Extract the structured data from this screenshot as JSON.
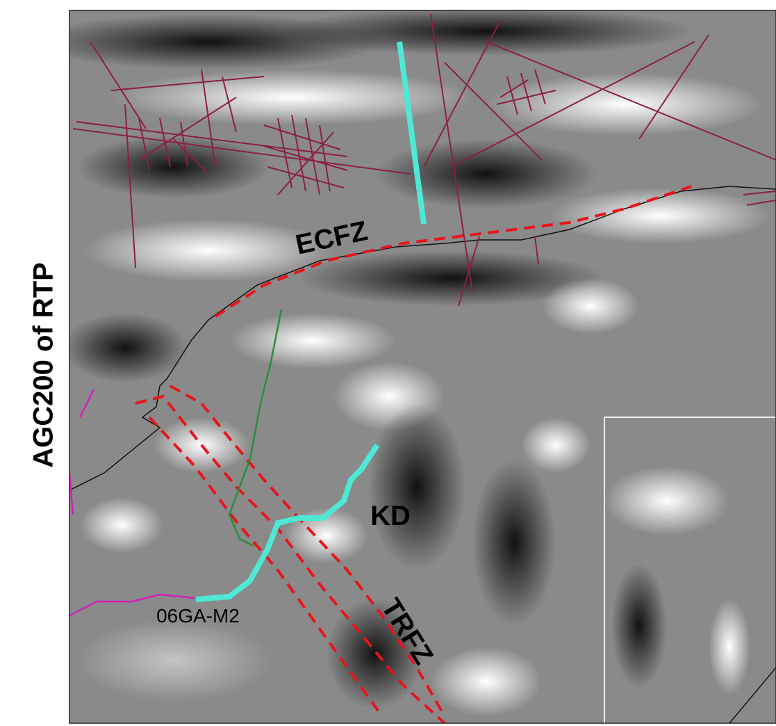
{
  "title": "AGC200 of RTP",
  "labels": {
    "ecfz": "ECFZ",
    "kd": "KD",
    "trfz": "TRFZ",
    "profile": "06GA-M2"
  }
}
